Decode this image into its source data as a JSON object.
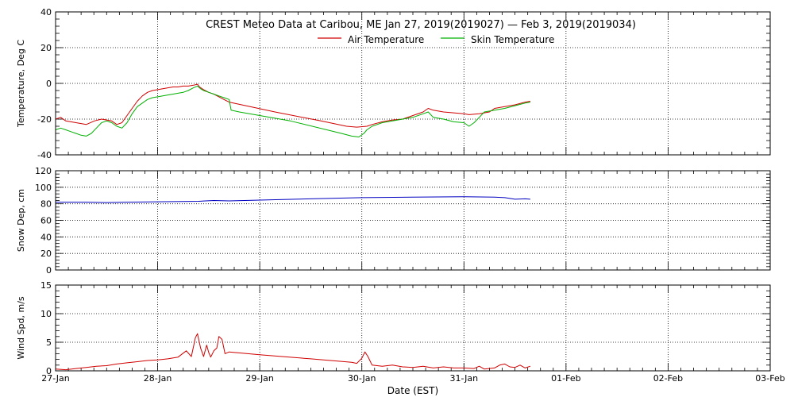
{
  "figure": {
    "title": "CREST Meteo Data at Caribou, ME   Jan 27, 2019(2019027) — Feb  3, 2019(2019034)",
    "xlabel": "Date (EST)",
    "x_tick_labels": [
      "27-Jan",
      "28-Jan",
      "29-Jan",
      "30-Jan",
      "31-Jan",
      "01-Feb",
      "02-Feb",
      "03-Feb"
    ]
  },
  "chart_data": [
    {
      "type": "line",
      "ylabel": "Temperature, Deg C",
      "xlim": [
        0,
        7
      ],
      "ylim": [
        -40,
        40
      ],
      "y_ticks": [
        -40,
        -20,
        0,
        20,
        40
      ],
      "grid": true,
      "legend_position": "top-center",
      "series": [
        {
          "name": "Air Temperature",
          "color": "#d00000",
          "points": [
            [
              0.0,
              -20
            ],
            [
              0.05,
              -19
            ],
            [
              0.1,
              -21
            ],
            [
              0.2,
              -22
            ],
            [
              0.3,
              -23
            ],
            [
              0.38,
              -21
            ],
            [
              0.45,
              -20
            ],
            [
              0.55,
              -21
            ],
            [
              0.6,
              -23
            ],
            [
              0.65,
              -22
            ],
            [
              0.7,
              -18
            ],
            [
              0.75,
              -14
            ],
            [
              0.8,
              -10
            ],
            [
              0.85,
              -7
            ],
            [
              0.9,
              -5
            ],
            [
              0.95,
              -4
            ],
            [
              1.0,
              -3.5
            ],
            [
              1.05,
              -3
            ],
            [
              1.1,
              -2.5
            ],
            [
              1.15,
              -2
            ],
            [
              1.2,
              -2
            ],
            [
              1.25,
              -1.5
            ],
            [
              1.3,
              -1.5
            ],
            [
              1.35,
              -1
            ],
            [
              1.39,
              -0.5
            ],
            [
              1.41,
              -2
            ],
            [
              1.45,
              -3.5
            ],
            [
              1.5,
              -5
            ],
            [
              1.55,
              -6
            ],
            [
              1.6,
              -7.5
            ],
            [
              1.65,
              -9
            ],
            [
              1.7,
              -10.5
            ],
            [
              2.15,
              -16
            ],
            [
              2.6,
              -21
            ],
            [
              2.85,
              -24
            ],
            [
              2.95,
              -24.5
            ],
            [
              3.05,
              -24
            ],
            [
              3.1,
              -23
            ],
            [
              3.2,
              -21.5
            ],
            [
              3.3,
              -20.5
            ],
            [
              3.4,
              -20
            ],
            [
              3.5,
              -18
            ],
            [
              3.6,
              -16
            ],
            [
              3.65,
              -14
            ],
            [
              3.7,
              -15
            ],
            [
              3.8,
              -16
            ],
            [
              3.9,
              -16.5
            ],
            [
              4.0,
              -17
            ],
            [
              4.05,
              -17.5
            ],
            [
              4.15,
              -17
            ],
            [
              4.25,
              -16
            ],
            [
              4.3,
              -14
            ],
            [
              4.4,
              -13
            ],
            [
              4.5,
              -12
            ],
            [
              4.6,
              -10.5
            ],
            [
              4.65,
              -10
            ]
          ]
        },
        {
          "name": "Skin Temperature",
          "color": "#00b000",
          "points": [
            [
              0.0,
              -26
            ],
            [
              0.05,
              -25
            ],
            [
              0.1,
              -26
            ],
            [
              0.15,
              -27
            ],
            [
              0.2,
              -28
            ],
            [
              0.25,
              -29
            ],
            [
              0.3,
              -29.5
            ],
            [
              0.35,
              -28
            ],
            [
              0.4,
              -25
            ],
            [
              0.45,
              -22
            ],
            [
              0.5,
              -21
            ],
            [
              0.55,
              -22
            ],
            [
              0.6,
              -24
            ],
            [
              0.65,
              -25
            ],
            [
              0.7,
              -22
            ],
            [
              0.75,
              -17
            ],
            [
              0.8,
              -13
            ],
            [
              0.85,
              -11
            ],
            [
              0.9,
              -9
            ],
            [
              0.95,
              -8
            ],
            [
              1.0,
              -7.5
            ],
            [
              1.05,
              -7
            ],
            [
              1.1,
              -6.5
            ],
            [
              1.15,
              -6
            ],
            [
              1.2,
              -5.5
            ],
            [
              1.25,
              -5
            ],
            [
              1.3,
              -4
            ],
            [
              1.35,
              -2.5
            ],
            [
              1.39,
              -1.5
            ],
            [
              1.42,
              -3
            ],
            [
              1.45,
              -4
            ],
            [
              1.5,
              -5
            ],
            [
              1.55,
              -6
            ],
            [
              1.6,
              -7
            ],
            [
              1.65,
              -8
            ],
            [
              1.7,
              -9
            ],
            [
              1.72,
              -15
            ],
            [
              1.8,
              -16
            ],
            [
              2.3,
              -21
            ],
            [
              2.8,
              -28
            ],
            [
              2.9,
              -29.5
            ],
            [
              2.97,
              -30
            ],
            [
              3.02,
              -28
            ],
            [
              3.05,
              -26
            ],
            [
              3.1,
              -24
            ],
            [
              3.15,
              -23
            ],
            [
              3.2,
              -22
            ],
            [
              3.3,
              -21
            ],
            [
              3.4,
              -20
            ],
            [
              3.5,
              -19
            ],
            [
              3.6,
              -17
            ],
            [
              3.65,
              -16
            ],
            [
              3.7,
              -19
            ],
            [
              3.8,
              -20
            ],
            [
              3.9,
              -21.5
            ],
            [
              4.0,
              -22
            ],
            [
              4.05,
              -24
            ],
            [
              4.1,
              -22
            ],
            [
              4.15,
              -19
            ],
            [
              4.2,
              -16
            ],
            [
              4.3,
              -15
            ],
            [
              4.4,
              -14
            ],
            [
              4.5,
              -12.5
            ],
            [
              4.6,
              -11
            ],
            [
              4.65,
              -10.5
            ]
          ]
        }
      ]
    },
    {
      "type": "line",
      "ylabel": "Snow Dep, cm",
      "xlim": [
        0,
        7
      ],
      "ylim": [
        0,
        120
      ],
      "y_ticks": [
        0,
        20,
        40,
        60,
        80,
        100,
        120
      ],
      "grid": true,
      "series": [
        {
          "color": "#0000c0",
          "points": [
            [
              0.0,
              82
            ],
            [
              0.3,
              82
            ],
            [
              0.5,
              81.5
            ],
            [
              0.7,
              82
            ],
            [
              1.0,
              82.5
            ],
            [
              1.4,
              83
            ],
            [
              1.55,
              84
            ],
            [
              1.7,
              83.5
            ],
            [
              2.0,
              84.5
            ],
            [
              2.5,
              86
            ],
            [
              3.0,
              87.5
            ],
            [
              3.5,
              88
            ],
            [
              4.0,
              88.5
            ],
            [
              4.3,
              88
            ],
            [
              4.4,
              87.5
            ],
            [
              4.5,
              85.5
            ],
            [
              4.6,
              86
            ],
            [
              4.65,
              85.5
            ]
          ]
        }
      ]
    },
    {
      "type": "line",
      "ylabel": "Wind Spd, m/s",
      "xlim": [
        0,
        7
      ],
      "ylim": [
        0,
        15
      ],
      "y_ticks": [
        0,
        5,
        10,
        15
      ],
      "grid": true,
      "series": [
        {
          "color": "#d00000",
          "points": [
            [
              0.0,
              0.3
            ],
            [
              0.1,
              0.2
            ],
            [
              0.2,
              0.4
            ],
            [
              0.3,
              0.6
            ],
            [
              0.4,
              0.8
            ],
            [
              0.5,
              0.9
            ],
            [
              0.6,
              1.2
            ],
            [
              0.7,
              1.4
            ],
            [
              0.8,
              1.6
            ],
            [
              0.9,
              1.8
            ],
            [
              1.0,
              1.9
            ],
            [
              1.1,
              2.1
            ],
            [
              1.2,
              2.4
            ],
            [
              1.28,
              3.5
            ],
            [
              1.33,
              2.5
            ],
            [
              1.37,
              5.8
            ],
            [
              1.39,
              6.5
            ],
            [
              1.42,
              4.0
            ],
            [
              1.45,
              2.5
            ],
            [
              1.48,
              4.5
            ],
            [
              1.5,
              3.2
            ],
            [
              1.52,
              2.4
            ],
            [
              1.55,
              3.5
            ],
            [
              1.58,
              4.0
            ],
            [
              1.6,
              6.0
            ],
            [
              1.63,
              5.5
            ],
            [
              1.66,
              3.0
            ],
            [
              1.7,
              3.3
            ],
            [
              2.0,
              2.8
            ],
            [
              2.5,
              2.1
            ],
            [
              2.9,
              1.5
            ],
            [
              2.95,
              1.3
            ],
            [
              3.0,
              2.2
            ],
            [
              3.03,
              3.3
            ],
            [
              3.06,
              2.5
            ],
            [
              3.1,
              1.0
            ],
            [
              3.2,
              0.8
            ],
            [
              3.3,
              1.0
            ],
            [
              3.4,
              0.7
            ],
            [
              3.5,
              0.6
            ],
            [
              3.6,
              0.8
            ],
            [
              3.7,
              0.5
            ],
            [
              3.8,
              0.7
            ],
            [
              3.9,
              0.5
            ],
            [
              4.0,
              0.5
            ],
            [
              4.1,
              0.4
            ],
            [
              4.15,
              0.8
            ],
            [
              4.2,
              0.3
            ],
            [
              4.3,
              0.5
            ],
            [
              4.35,
              1.0
            ],
            [
              4.4,
              1.2
            ],
            [
              4.45,
              0.7
            ],
            [
              4.5,
              0.6
            ],
            [
              4.55,
              1.0
            ],
            [
              4.6,
              0.5
            ],
            [
              4.65,
              0.8
            ]
          ]
        }
      ]
    }
  ]
}
